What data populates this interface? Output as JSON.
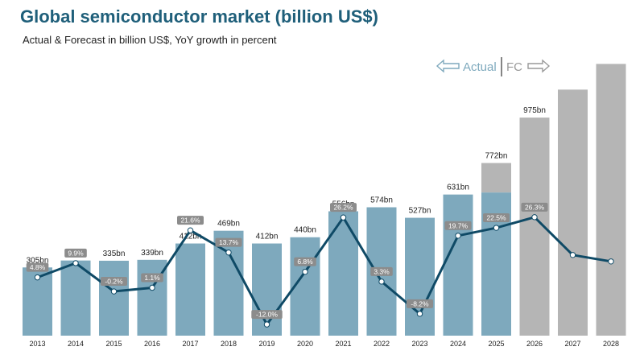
{
  "title": "Global semiconductor market (billion US$)",
  "subtitle": "Actual & Forecast in billion US$, YoY growth in percent",
  "legend": {
    "actual_label": "Actual",
    "forecast_label": "FC"
  },
  "colors": {
    "title": "#1f5f7a",
    "actual_bar": "#7ea9bd",
    "forecast_bar": "#b5b5b5",
    "line": "#0f4a66",
    "growth_label_bg": "#8c8c8c",
    "legend_actual": "#7ea9bd",
    "legend_forecast": "#999999"
  },
  "chart_data": {
    "type": "bar",
    "categories": [
      "2013",
      "2014",
      "2015",
      "2016",
      "2017",
      "2018",
      "2019",
      "2020",
      "2021",
      "2022",
      "2023",
      "2024",
      "2025",
      "2026",
      "2027",
      "2028"
    ],
    "series": [
      {
        "values": [
          305,
          336,
          335,
          339,
          412,
          469,
          412,
          440,
          556,
          574,
          527,
          631,
          772,
          975,
          null,
          null
        ],
        "value_labels": [
          "305bn",
          "336bn",
          "335bn",
          "339bn",
          "412bn",
          "469bn",
          "412bn",
          "440bn",
          "556bn",
          "574bn",
          "527bn",
          "631bn",
          "772bn",
          "975bn",
          "",
          ""
        ],
        "forecast": [
          false,
          false,
          false,
          false,
          false,
          false,
          false,
          false,
          false,
          false,
          false,
          false,
          true,
          true,
          true,
          true
        ],
        "unlabeled_forecast_estimates": [
          null,
          null,
          null,
          null,
          null,
          null,
          null,
          null,
          null,
          null,
          null,
          null,
          null,
          null,
          1100,
          1215
        ],
        "actual_portion_2025": 640
      },
      {
        "type": "line",
        "values": [
          4.8,
          9.9,
          -0.2,
          1.1,
          21.6,
          13.7,
          -12.0,
          6.8,
          26.2,
          3.3,
          -8.2,
          19.7,
          22.5,
          26.3,
          null,
          null
        ],
        "labels": [
          "4.8%",
          "9.9%",
          "-0.2%",
          "1.1%",
          "21.6%",
          "13.7%",
          "-12.0%",
          "6.8%",
          "26.2%",
          "3.3%",
          "-8.2%",
          "19.7%",
          "22.5%",
          "26.3%",
          "",
          ""
        ],
        "unlabeled_estimates": [
          null,
          null,
          null,
          null,
          null,
          null,
          null,
          null,
          null,
          null,
          null,
          null,
          null,
          null,
          12.8,
          10.5
        ]
      }
    ],
    "ylim_bars": [
      0,
      1220
    ],
    "ylim_growth": [
      -16,
      32
    ],
    "grid": false,
    "legend": "top-right"
  }
}
